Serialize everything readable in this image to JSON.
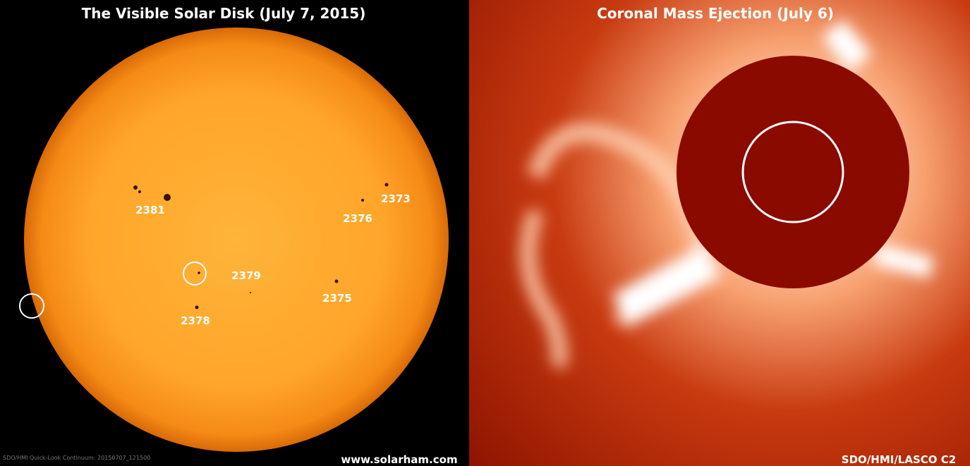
{
  "left_panel": {
    "title": "The Visible Solar Disk (July 7, 2015)",
    "sunspot_labels": [
      "2381",
      "2376",
      "2373",
      "2379",
      "2375",
      "2378"
    ],
    "caption": "SDO/HMI  Quick-Look  Continuum:  20150707_121500",
    "website": "www.solarham.com"
  },
  "right_panel": {
    "title": "Coronal Mass Ejection (July 6)",
    "credit": "SDO/HMI/LASCO C2"
  }
}
